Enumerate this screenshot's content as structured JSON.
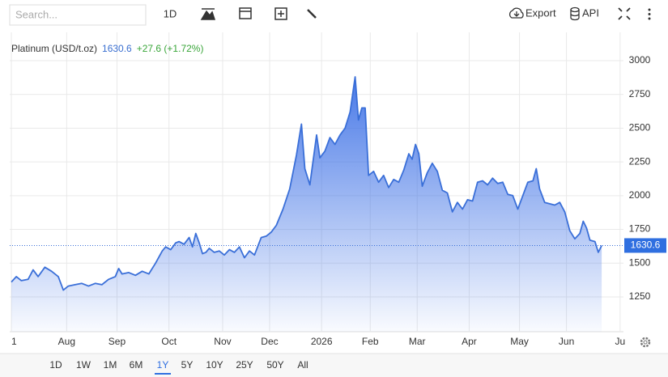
{
  "ui": {
    "search_placeholder": "Search...",
    "interval": "1D",
    "export": "Export",
    "api": "API",
    "ranges": [
      "1D",
      "1W",
      "1M",
      "6M",
      "1Y",
      "5Y",
      "10Y",
      "25Y",
      "50Y",
      "All"
    ],
    "selected_range": 4,
    "change": "+27.6 (+1.72%)"
  },
  "chart_data": {
    "type": "area",
    "x": [
      0,
      3,
      6,
      10,
      13,
      16,
      20,
      24,
      28,
      31,
      34,
      38,
      42,
      46,
      50,
      54,
      58,
      62,
      64,
      66,
      70,
      74,
      78,
      82,
      86,
      90,
      92,
      95,
      98,
      100,
      103,
      106,
      108,
      110,
      112,
      114,
      116,
      118,
      121,
      124,
      127,
      130,
      133,
      136,
      139,
      142,
      145,
      149,
      152,
      155,
      158,
      162,
      166,
      170,
      173,
      175,
      178,
      182,
      184,
      187,
      190,
      193,
      196,
      199,
      202,
      205,
      207,
      209,
      211,
      213,
      216,
      219,
      222,
      225,
      228,
      231,
      234,
      237,
      239,
      241,
      243,
      245,
      248,
      251,
      254,
      257,
      260,
      263,
      266,
      269,
      272,
      275,
      278,
      281,
      284,
      287,
      290,
      293,
      296,
      299,
      302,
      305,
      308,
      311,
      313,
      315,
      318,
      321,
      324,
      327,
      330,
      333,
      336,
      339,
      341,
      343,
      345,
      348,
      350,
      352
    ],
    "series": [
      {
        "name": "Platinum (USD/t.oz)",
        "color": "#3a6fd8",
        "values": [
          1360,
          1400,
          1370,
          1380,
          1450,
          1400,
          1470,
          1440,
          1400,
          1300,
          1330,
          1340,
          1350,
          1330,
          1350,
          1340,
          1380,
          1400,
          1460,
          1420,
          1430,
          1410,
          1440,
          1420,
          1500,
          1590,
          1620,
          1600,
          1650,
          1660,
          1640,
          1690,
          1620,
          1720,
          1650,
          1570,
          1580,
          1610,
          1580,
          1590,
          1560,
          1600,
          1580,
          1620,
          1540,
          1590,
          1560,
          1690,
          1700,
          1730,
          1780,
          1900,
          2050,
          2300,
          2530,
          2200,
          2080,
          2450,
          2280,
          2330,
          2430,
          2380,
          2450,
          2500,
          2620,
          2880,
          2560,
          2650,
          2650,
          2150,
          2180,
          2100,
          2150,
          2060,
          2120,
          2100,
          2190,
          2310,
          2270,
          2380,
          2310,
          2070,
          2170,
          2240,
          2180,
          2040,
          2020,
          1880,
          1950,
          1900,
          1970,
          1960,
          2100,
          2110,
          2080,
          2130,
          2090,
          2100,
          2010,
          2000,
          1900,
          2000,
          2100,
          2110,
          2200,
          2050,
          1950,
          1940,
          1930,
          1950,
          1880,
          1740,
          1680,
          1720,
          1810,
          1760,
          1670,
          1660,
          1580,
          1630.6
        ]
      }
    ],
    "xlim": [
      0,
      365
    ],
    "xticks": [
      {
        "value": 0,
        "label": "1"
      },
      {
        "value": 33,
        "label": "Aug"
      },
      {
        "value": 63,
        "label": "Sep"
      },
      {
        "value": 94,
        "label": "Oct"
      },
      {
        "value": 126,
        "label": "Nov"
      },
      {
        "value": 154,
        "label": "Dec"
      },
      {
        "value": 185,
        "label": "2026"
      },
      {
        "value": 214,
        "label": "Feb"
      },
      {
        "value": 242,
        "label": "Mar"
      },
      {
        "value": 273,
        "label": "Apr"
      },
      {
        "value": 303,
        "label": "May"
      },
      {
        "value": 331,
        "label": "Jun"
      },
      {
        "value": 363,
        "label": "Ju"
      }
    ],
    "ylim": [
      992,
      3210
    ],
    "yticks": [
      1250,
      1500,
      1750,
      2000,
      2250,
      2500,
      2750,
      3000
    ],
    "grid": true
  }
}
